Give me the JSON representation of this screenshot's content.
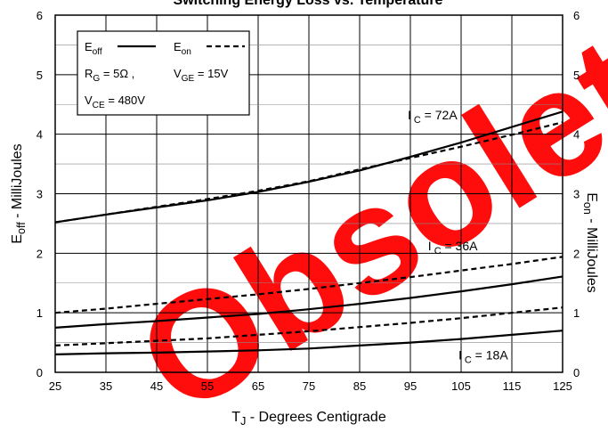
{
  "chart_data": {
    "type": "line",
    "title": "Switching Energy Loss vs. Temperature",
    "xlabel": {
      "base": "T",
      "sub": "J",
      "rest": " - Degrees Centigrade"
    },
    "ylabel_left": {
      "base": "E",
      "sub": "off",
      "rest": " - MilliJoules"
    },
    "ylabel_right": {
      "base": "E",
      "sub": "on",
      "rest": " - MilliJoules"
    },
    "xlim": [
      25,
      125
    ],
    "ylim": [
      0,
      6
    ],
    "x_ticks": [
      25,
      35,
      45,
      55,
      65,
      75,
      85,
      95,
      105,
      115,
      125
    ],
    "y_ticks": [
      0,
      1,
      2,
      3,
      4,
      5,
      6
    ],
    "y_minor_ticks": [
      0.5,
      1.5,
      2.5,
      3.5,
      4.5,
      5.5
    ],
    "grid": true,
    "x": [
      25,
      35,
      45,
      55,
      65,
      75,
      85,
      95,
      105,
      115,
      125
    ],
    "series": [
      {
        "group": "IC=72A",
        "style": "solid",
        "values": [
          2.52,
          2.65,
          2.77,
          2.89,
          3.03,
          3.2,
          3.39,
          3.62,
          3.86,
          4.12,
          4.38
        ]
      },
      {
        "group": "IC=72A",
        "style": "dashed",
        "values": [
          2.52,
          2.65,
          2.78,
          2.91,
          3.05,
          3.21,
          3.41,
          3.6,
          3.79,
          3.99,
          4.2
        ]
      },
      {
        "group": "IC=36A",
        "style": "solid",
        "values": [
          0.75,
          0.81,
          0.86,
          0.92,
          0.98,
          1.06,
          1.15,
          1.25,
          1.36,
          1.48,
          1.61
        ]
      },
      {
        "group": "IC=36A",
        "style": "dashed",
        "values": [
          1.0,
          1.07,
          1.15,
          1.23,
          1.31,
          1.4,
          1.5,
          1.6,
          1.71,
          1.82,
          1.94
        ]
      },
      {
        "group": "IC=18A",
        "style": "solid",
        "values": [
          0.3,
          0.32,
          0.33,
          0.35,
          0.37,
          0.4,
          0.45,
          0.5,
          0.56,
          0.63,
          0.7
        ]
      },
      {
        "group": "IC=18A",
        "style": "dashed",
        "values": [
          0.45,
          0.49,
          0.53,
          0.57,
          0.63,
          0.69,
          0.76,
          0.83,
          0.91,
          1.0,
          1.09
        ]
      }
    ],
    "legend": {
      "placement": "top-left",
      "solid": {
        "base": "E",
        "sub": "off"
      },
      "dashed": {
        "base": "E",
        "sub": "on"
      },
      "line2": {
        "a_base": "R",
        "a_sub": "G",
        "a_rest": " = 5Ω ,",
        "b_base": "V",
        "b_sub": "GE",
        "b_rest": " = 15V"
      },
      "line3": {
        "base": "V",
        "sub": "CE",
        "rest": " = 480V"
      }
    },
    "annotations": [
      {
        "base": "I",
        "sub": "C",
        "rest": " = 72A",
        "x": 105,
        "y": 4.25
      },
      {
        "base": "I",
        "sub": "C",
        "rest": " = 36A",
        "x": 109,
        "y": 2.05
      },
      {
        "base": "I",
        "sub": "C",
        "rest": " = 18A",
        "x": 115,
        "y": 0.22
      }
    ],
    "colors": {
      "line": "#000000",
      "grid": "#000000",
      "watermark": "#ff0000"
    }
  },
  "watermark": {
    "text": "Obsolete"
  }
}
